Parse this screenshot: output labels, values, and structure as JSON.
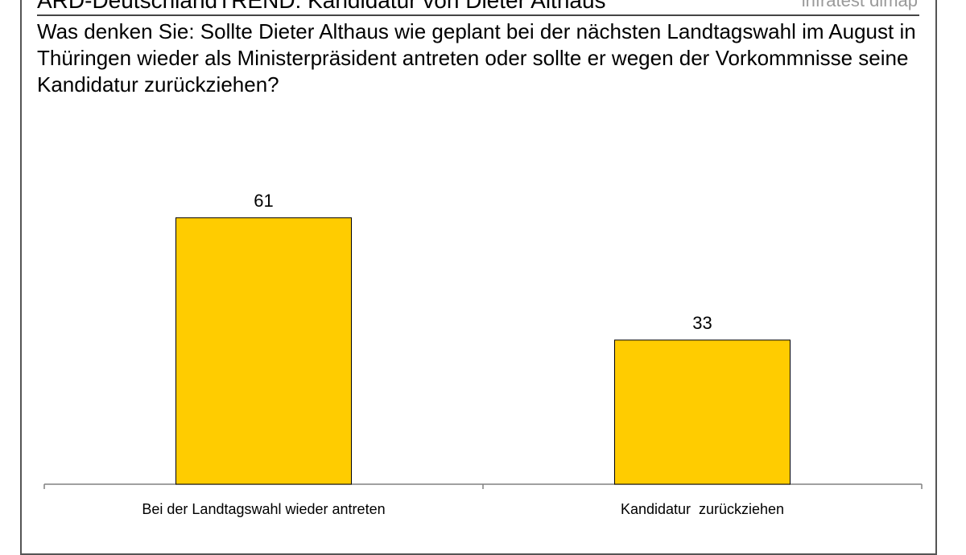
{
  "header": {
    "title": "ARD-DeutschlandTREND: Kandidatur von Dieter Althaus",
    "brand": "infratest dimap"
  },
  "question": "Was denken Sie: Sollte Dieter Althaus wie geplant bei der nächsten Landtagswahl im August in Thüringen wieder als Ministerpräsident antreten oder sollte er wegen der Vorkommnisse seine Kandidatur zurückziehen?",
  "colors": {
    "bar_fill": "#FFCC00",
    "bar_stroke": "#000000",
    "axis": "#808080"
  },
  "chart_data": {
    "type": "bar",
    "categories": [
      "Bei der Landtagswahl wieder antreten",
      "Kandidatur  zurückziehen"
    ],
    "values": [
      61,
      33
    ],
    "data_labels": [
      "61",
      "33"
    ],
    "title": "",
    "xlabel": "",
    "ylabel": "",
    "ylim": [
      0,
      70
    ],
    "grid": false,
    "legend": "none"
  }
}
